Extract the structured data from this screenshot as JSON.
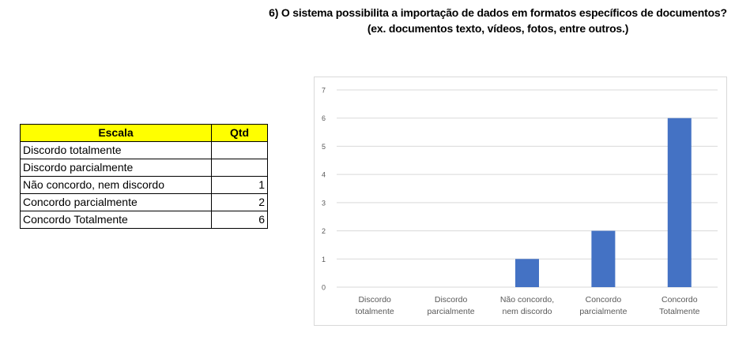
{
  "title_line1": "6) O sistema possibilita a importação de dados em formatos específicos de documentos?",
  "title_line2": "(ex. documentos texto, vídeos, fotos, entre outros.)",
  "table": {
    "header": [
      "Escala",
      "Qtd"
    ],
    "rows": [
      {
        "label": "Discordo totalmente",
        "qty": ""
      },
      {
        "label": "Discordo parcialmente",
        "qty": ""
      },
      {
        "label": "Não concordo, nem discordo",
        "qty": "1"
      },
      {
        "label": "Concordo parcialmente",
        "qty": "2"
      },
      {
        "label": "Concordo Totalmente",
        "qty": "6"
      }
    ],
    "header_color": "#ffff00"
  },
  "chart_data": {
    "type": "bar",
    "categories": [
      [
        "Discordo",
        "totalmente"
      ],
      [
        "Discordo",
        "parcialmente"
      ],
      [
        "Não concordo,",
        "nem discordo"
      ],
      [
        "Concordo",
        "parcialmente"
      ],
      [
        "Concordo",
        "Totalmente"
      ]
    ],
    "values": [
      0,
      0,
      1,
      2,
      6
    ],
    "ylim": [
      0,
      7
    ],
    "yticks": [
      0,
      1,
      2,
      3,
      4,
      5,
      6,
      7
    ],
    "grid": true,
    "legend": "none",
    "bar_color": "#4472c4",
    "grid_color": "#d9d9d9",
    "tick_color": "#595959"
  }
}
